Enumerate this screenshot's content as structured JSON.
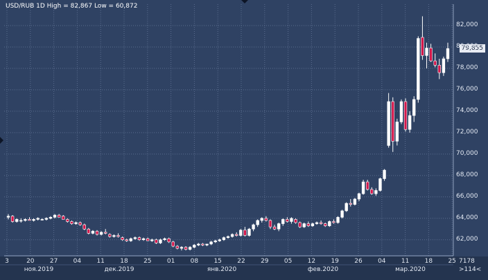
{
  "header": {
    "title": "USD/RUB 1D High = 82,867 Low = 60,872",
    "last_price": "79,855"
  },
  "axis": {
    "y_ticks": [
      "82,000",
      "80,000",
      "78,000",
      "76,000",
      "74,000",
      "72,000",
      "70,000",
      "68,000",
      "66,000",
      "64,000",
      "62,000"
    ],
    "x_ticks": [
      "3",
      "20",
      "27",
      "04",
      "11",
      "18",
      "25",
      "01",
      "08",
      "15",
      "22",
      "29",
      "05",
      "12",
      "19",
      "26",
      "04",
      "11",
      "18",
      "25"
    ],
    "months": [
      "ноя.2019",
      "дек.2019",
      "янв.2020",
      "фев.2020",
      "мар.2020"
    ],
    "bars_count": "7178",
    "zoom_label": ">114<"
  },
  "colors": {
    "background": "#2f4263",
    "grid": "#5a6d8e",
    "up_candle": "#ffffff",
    "down_candle": "#d4164a",
    "wick": "#ffffff"
  },
  "chart_data": {
    "type": "candlestick",
    "symbol": "USD/RUB",
    "timeframe": "1D",
    "high": 82.867,
    "low": 60.872,
    "ylim": [
      60.5,
      84.0
    ],
    "grid": true,
    "candles": [
      [
        64.1,
        64.4,
        63.9,
        64.2
      ],
      [
        64.2,
        64.3,
        63.6,
        63.7
      ],
      [
        63.7,
        64.0,
        63.6,
        63.9
      ],
      [
        63.8,
        64.0,
        63.6,
        63.8
      ],
      [
        63.8,
        64.0,
        63.7,
        63.9
      ],
      [
        63.9,
        64.1,
        63.8,
        63.8
      ],
      [
        63.8,
        64.0,
        63.7,
        63.9
      ],
      [
        63.9,
        64.1,
        63.8,
        64.0
      ],
      [
        63.9,
        64.0,
        63.8,
        63.9
      ],
      [
        63.9,
        64.1,
        63.8,
        64.0
      ],
      [
        64.0,
        64.2,
        63.9,
        64.1
      ],
      [
        64.1,
        64.4,
        64.0,
        64.3
      ],
      [
        64.3,
        64.4,
        64.1,
        64.1
      ],
      [
        64.2,
        64.3,
        63.9,
        63.9
      ],
      [
        63.9,
        64.0,
        63.6,
        63.7
      ],
      [
        63.7,
        63.8,
        63.4,
        63.5
      ],
      [
        63.5,
        63.7,
        63.4,
        63.6
      ],
      [
        63.6,
        63.7,
        63.3,
        63.4
      ],
      [
        63.4,
        63.5,
        62.9,
        63.0
      ],
      [
        63.0,
        63.1,
        62.5,
        62.6
      ],
      [
        62.6,
        62.9,
        62.5,
        62.8
      ],
      [
        62.8,
        62.9,
        62.4,
        62.5
      ],
      [
        62.5,
        62.8,
        62.4,
        62.7
      ],
      [
        62.7,
        63.0,
        62.5,
        62.6
      ],
      [
        62.5,
        62.6,
        62.2,
        62.3
      ],
      [
        62.3,
        62.5,
        62.2,
        62.4
      ],
      [
        62.4,
        62.6,
        62.2,
        62.3
      ],
      [
        62.2,
        62.3,
        61.9,
        62.0
      ],
      [
        62.0,
        62.1,
        61.8,
        61.9
      ],
      [
        61.9,
        62.2,
        61.8,
        62.1
      ],
      [
        62.1,
        62.3,
        62.0,
        62.2
      ],
      [
        62.2,
        62.3,
        61.9,
        62.0
      ],
      [
        62.0,
        62.2,
        61.9,
        62.1
      ],
      [
        62.1,
        62.2,
        61.9,
        61.9
      ],
      [
        61.9,
        62.1,
        61.8,
        62.0
      ],
      [
        62.0,
        62.1,
        61.6,
        61.7
      ],
      [
        61.7,
        62.1,
        61.6,
        62.0
      ],
      [
        62.0,
        62.2,
        61.9,
        62.1
      ],
      [
        62.1,
        62.2,
        61.7,
        61.8
      ],
      [
        61.8,
        61.9,
        61.3,
        61.4
      ],
      [
        61.4,
        61.5,
        61.1,
        61.2
      ],
      [
        61.2,
        61.4,
        61.0,
        61.3
      ],
      [
        61.3,
        61.4,
        61.0,
        61.1
      ],
      [
        61.1,
        61.4,
        61.0,
        61.3
      ],
      [
        61.3,
        61.6,
        61.2,
        61.5
      ],
      [
        61.5,
        61.7,
        61.4,
        61.6
      ],
      [
        61.6,
        61.7,
        61.4,
        61.5
      ],
      [
        61.5,
        61.6,
        61.4,
        61.6
      ],
      [
        61.6,
        61.9,
        61.5,
        61.8
      ],
      [
        61.8,
        62.0,
        61.7,
        61.9
      ],
      [
        61.9,
        62.1,
        61.8,
        62.0
      ],
      [
        62.0,
        62.3,
        61.9,
        62.2
      ],
      [
        62.2,
        62.4,
        62.1,
        62.3
      ],
      [
        62.3,
        62.6,
        62.2,
        62.5
      ],
      [
        62.5,
        62.7,
        62.3,
        62.4
      ],
      [
        62.4,
        63.0,
        62.3,
        62.9
      ],
      [
        62.9,
        63.2,
        62.3,
        62.4
      ],
      [
        62.4,
        63.1,
        62.3,
        63.0
      ],
      [
        63.0,
        63.5,
        62.8,
        63.4
      ],
      [
        63.4,
        63.9,
        63.2,
        63.8
      ],
      [
        63.8,
        64.1,
        63.6,
        64.0
      ],
      [
        64.0,
        64.2,
        63.7,
        63.8
      ],
      [
        63.8,
        63.9,
        63.0,
        63.2
      ],
      [
        63.2,
        63.4,
        62.9,
        63.0
      ],
      [
        63.0,
        63.6,
        62.8,
        63.5
      ],
      [
        63.5,
        64.0,
        63.3,
        63.9
      ],
      [
        63.9,
        64.1,
        63.6,
        63.7
      ],
      [
        63.7,
        64.1,
        63.5,
        64.0
      ],
      [
        63.9,
        64.0,
        63.5,
        63.6
      ],
      [
        63.6,
        63.7,
        63.1,
        63.2
      ],
      [
        63.2,
        63.6,
        63.1,
        63.5
      ],
      [
        63.5,
        63.7,
        63.2,
        63.3
      ],
      [
        63.3,
        63.6,
        63.2,
        63.5
      ],
      [
        63.5,
        63.7,
        63.4,
        63.6
      ],
      [
        63.6,
        63.8,
        63.4,
        63.5
      ],
      [
        63.5,
        63.6,
        63.2,
        63.3
      ],
      [
        63.3,
        63.8,
        63.2,
        63.7
      ],
      [
        63.7,
        63.9,
        63.5,
        63.6
      ],
      [
        63.6,
        64.2,
        63.5,
        64.1
      ],
      [
        64.1,
        64.8,
        64.0,
        64.7
      ],
      [
        64.7,
        65.5,
        64.6,
        65.4
      ],
      [
        65.4,
        65.8,
        65.1,
        65.3
      ],
      [
        65.3,
        65.9,
        65.2,
        65.8
      ],
      [
        65.8,
        66.4,
        65.6,
        66.3
      ],
      [
        66.3,
        67.6,
        66.2,
        67.4
      ],
      [
        67.4,
        67.6,
        66.6,
        66.7
      ],
      [
        66.7,
        66.9,
        66.2,
        66.3
      ],
      [
        66.3,
        66.8,
        66.1,
        66.6
      ],
      [
        66.6,
        67.8,
        66.5,
        67.7
      ],
      [
        67.7,
        68.6,
        67.5,
        68.5
      ],
      [
        70.8,
        75.7,
        70.6,
        74.9
      ],
      [
        74.9,
        75.3,
        70.2,
        71.2
      ],
      [
        71.2,
        73.3,
        70.8,
        73.0
      ],
      [
        73.0,
        75.1,
        72.8,
        74.9
      ],
      [
        74.9,
        75.2,
        72.1,
        72.3
      ],
      [
        72.3,
        74.0,
        72.0,
        73.6
      ],
      [
        73.6,
        75.4,
        73.0,
        75.1
      ],
      [
        75.1,
        81.0,
        74.8,
        80.8
      ],
      [
        80.9,
        82.867,
        78.8,
        79.2
      ],
      [
        79.2,
        80.4,
        78.0,
        79.9
      ],
      [
        79.9,
        80.3,
        78.6,
        78.7
      ],
      [
        78.7,
        79.4,
        78.1,
        78.3
      ],
      [
        78.3,
        78.9,
        77.0,
        77.6
      ],
      [
        77.6,
        79.1,
        77.3,
        78.9
      ],
      [
        78.9,
        80.4,
        78.6,
        79.855
      ]
    ]
  }
}
